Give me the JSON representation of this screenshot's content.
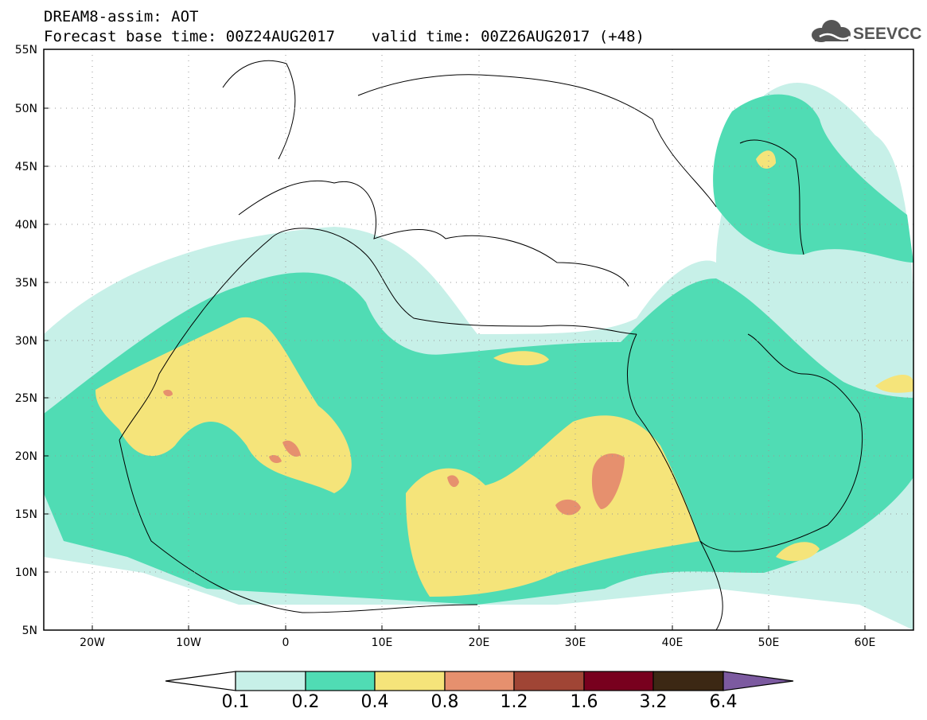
{
  "header": {
    "title_line1": "DREAM8-assim: AOT",
    "title_line2": "Forecast base time: 00Z24AUG2017    valid time: 00Z26AUG2017 (+48)"
  },
  "logo": {
    "text": "SEEVCCC",
    "icon": "cloud-icon"
  },
  "map": {
    "lat_labels": [
      "55N",
      "50N",
      "45N",
      "40N",
      "35N",
      "30N",
      "25N",
      "20N",
      "15N",
      "10N",
      "5N"
    ],
    "lon_labels": [
      "20W",
      "10W",
      "0",
      "10E",
      "20E",
      "30E",
      "40E",
      "50E",
      "60E"
    ],
    "lat_range": [
      5,
      55
    ],
    "lon_range": [
      -25,
      65
    ]
  },
  "colorbar": {
    "ticks": [
      "0.1",
      "0.2",
      "0.4",
      "0.8",
      "1.2",
      "1.6",
      "3.2",
      "6.4"
    ],
    "colors": [
      "#c7f0e8",
      "#50dcb4",
      "#f5e47a",
      "#e6906e",
      "#a04535",
      "#78001e",
      "#3c2814",
      "#7c5aa0"
    ]
  }
}
